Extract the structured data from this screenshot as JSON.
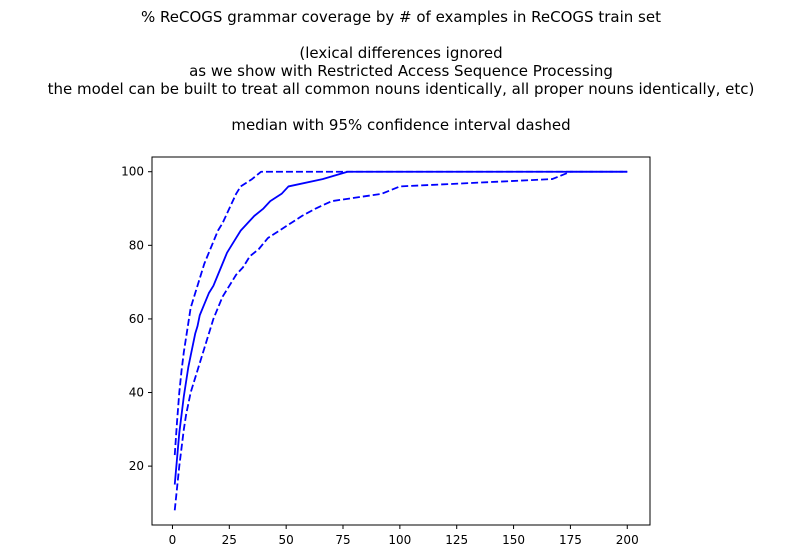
{
  "chart_data": {
    "type": "line",
    "title_lines": [
      "% ReCOGS grammar coverage by # of examples in ReCOGS train set",
      "",
      "(lexical differences ignored",
      "as we show with Restricted Access Sequence Processing",
      "the model can be built to treat all common nouns identically, all proper nouns identically, etc)",
      "",
      "median with 95% confidence interval dashed"
    ],
    "xlabel": "",
    "ylabel": "",
    "xlim": [
      -9,
      210
    ],
    "ylim": [
      4,
      104
    ],
    "x_ticks": [
      0,
      25,
      50,
      75,
      100,
      125,
      150,
      175,
      200
    ],
    "y_ticks": [
      20,
      40,
      60,
      80,
      100
    ],
    "grid": false,
    "color": "#0000ff",
    "series": [
      {
        "style": "solid",
        "points": [
          [
            1,
            15
          ],
          [
            2,
            22
          ],
          [
            3,
            29
          ],
          [
            4,
            34
          ],
          [
            5,
            39
          ],
          [
            6,
            43
          ],
          [
            7,
            47
          ],
          [
            8,
            50
          ],
          [
            9,
            53
          ],
          [
            10,
            56
          ],
          [
            11,
            58
          ],
          [
            12,
            61
          ],
          [
            14,
            64
          ],
          [
            16,
            67
          ],
          [
            18,
            69
          ],
          [
            20,
            72
          ],
          [
            22,
            75
          ],
          [
            24,
            78
          ],
          [
            26,
            80
          ],
          [
            28,
            82
          ],
          [
            30,
            84
          ],
          [
            33,
            86
          ],
          [
            36,
            88
          ],
          [
            40,
            90
          ],
          [
            43,
            92
          ],
          [
            48,
            94
          ],
          [
            51,
            96
          ],
          [
            66,
            98
          ],
          [
            77,
            100
          ],
          [
            200,
            100
          ]
        ]
      },
      {
        "style": "dashed",
        "points": [
          [
            1,
            23
          ],
          [
            2,
            32
          ],
          [
            3,
            40
          ],
          [
            4,
            46
          ],
          [
            5,
            51
          ],
          [
            6,
            55
          ],
          [
            7,
            59
          ],
          [
            8,
            63
          ],
          [
            10,
            67
          ],
          [
            12,
            71
          ],
          [
            14,
            75
          ],
          [
            16,
            78
          ],
          [
            18,
            81
          ],
          [
            20,
            84
          ],
          [
            22,
            86
          ],
          [
            25,
            90
          ],
          [
            28,
            94
          ],
          [
            30,
            96
          ],
          [
            35,
            98
          ],
          [
            39,
            100
          ],
          [
            200,
            100
          ]
        ]
      },
      {
        "style": "dashed",
        "points": [
          [
            1,
            8
          ],
          [
            2,
            14
          ],
          [
            3,
            20
          ],
          [
            4,
            25
          ],
          [
            5,
            30
          ],
          [
            6,
            34
          ],
          [
            7,
            37
          ],
          [
            8,
            40
          ],
          [
            10,
            44
          ],
          [
            12,
            48
          ],
          [
            14,
            52
          ],
          [
            16,
            56
          ],
          [
            18,
            60
          ],
          [
            20,
            63
          ],
          [
            22,
            66
          ],
          [
            25,
            69
          ],
          [
            28,
            72
          ],
          [
            31,
            74
          ],
          [
            34,
            77
          ],
          [
            38,
            79
          ],
          [
            42,
            82
          ],
          [
            47,
            84
          ],
          [
            52,
            86
          ],
          [
            57,
            88
          ],
          [
            63,
            90
          ],
          [
            70,
            92
          ],
          [
            92,
            94
          ],
          [
            100,
            96
          ],
          [
            167,
            98
          ],
          [
            175,
            100
          ],
          [
            200,
            100
          ]
        ]
      }
    ]
  }
}
